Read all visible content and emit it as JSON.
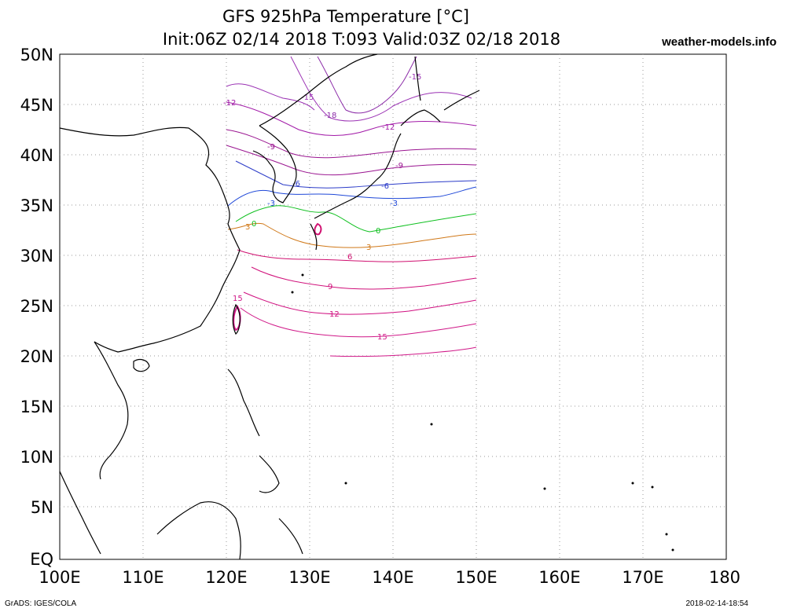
{
  "header": {
    "title_line1": "GFS 925hPa Temperature [°C]",
    "title_line2": "Init:06Z 02/14 2018 T:093 Valid:03Z 02/18 2018",
    "site": "weather-models.info"
  },
  "footer": {
    "left": "GrADS: IGES/COLA",
    "right": "2018-02-14-18:54"
  },
  "axes": {
    "lat_labels": [
      "50N",
      "45N",
      "40N",
      "35N",
      "30N",
      "25N",
      "20N",
      "15N",
      "10N",
      "5N",
      "EQ"
    ],
    "lon_labels": [
      "100E",
      "110E",
      "120E",
      "130E",
      "140E",
      "150E",
      "160E",
      "170E",
      "180"
    ]
  },
  "colors": {
    "coast": "#000000",
    "grid": "#9a9a9a",
    "c_m18": "#8c2ca8",
    "c_m15": "#9b32b4",
    "c_m12": "#a21aa8",
    "c_m9": "#9a1490",
    "c_m6": "#2b3bc8",
    "c_m3": "#1f48d8",
    "c_0": "#10c020",
    "c_3": "#d07818",
    "c_6": "#d01070",
    "c_9": "#d0107a",
    "c_12": "#d01080",
    "c_15": "#d01888"
  },
  "contour_labels": [
    {
      "id": "lbl-m15-a",
      "text": "-15"
    },
    {
      "id": "lbl-m15-b",
      "text": "-15"
    },
    {
      "id": "lbl-m12-a",
      "text": "-12"
    },
    {
      "id": "lbl-m12-b",
      "text": "-12"
    },
    {
      "id": "lbl-m18",
      "text": "-18"
    },
    {
      "id": "lbl-m9-a",
      "text": "-9"
    },
    {
      "id": "lbl-m9-b",
      "text": "-9"
    },
    {
      "id": "lbl-m6-a",
      "text": "-6"
    },
    {
      "id": "lbl-m6-b",
      "text": "-6"
    },
    {
      "id": "lbl-m3-a",
      "text": "-3"
    },
    {
      "id": "lbl-m3-b",
      "text": "-3"
    },
    {
      "id": "lbl-0-a",
      "text": "0"
    },
    {
      "id": "lbl-0-b",
      "text": "0"
    },
    {
      "id": "lbl-3-a",
      "text": "3"
    },
    {
      "id": "lbl-3-b",
      "text": "3"
    },
    {
      "id": "lbl-6",
      "text": "6"
    },
    {
      "id": "lbl-9",
      "text": "9"
    },
    {
      "id": "lbl-12",
      "text": "12"
    },
    {
      "id": "lbl-15-a",
      "text": "15"
    },
    {
      "id": "lbl-15-b",
      "text": "15"
    }
  ]
}
